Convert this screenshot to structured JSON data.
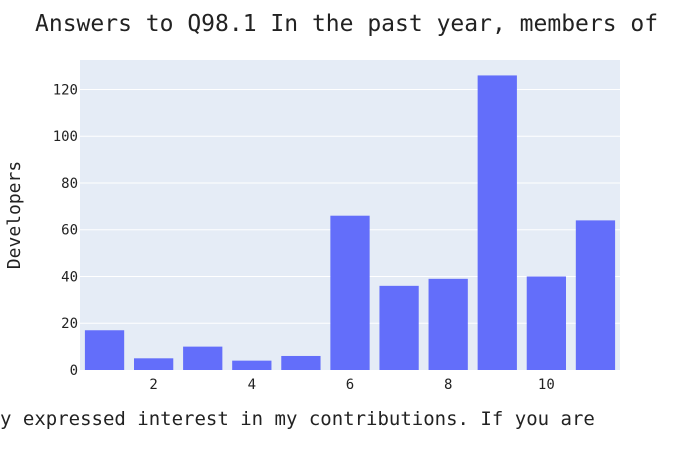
{
  "chart_data": {
    "type": "bar",
    "title": "Answers to Q98.1 In the past year, members of",
    "xlabel": "y expressed interest in my contributions. If you are",
    "ylabel": "Developers",
    "x": [
      1,
      2,
      3,
      4,
      5,
      6,
      7,
      8,
      9,
      10,
      11
    ],
    "values": [
      17,
      5,
      10,
      4,
      6,
      66,
      36,
      39,
      126,
      40,
      64
    ],
    "xticks": [
      2,
      4,
      6,
      8,
      10
    ],
    "yticks": [
      0,
      20,
      40,
      60,
      80,
      100,
      120
    ],
    "xlim": [
      0.5,
      11.5
    ],
    "ylim": [
      0,
      132.6
    ],
    "grid": true,
    "colors": {
      "bar": "#636efa",
      "plot_background": "#e5ecf6",
      "gridline": "#ffffff"
    }
  }
}
